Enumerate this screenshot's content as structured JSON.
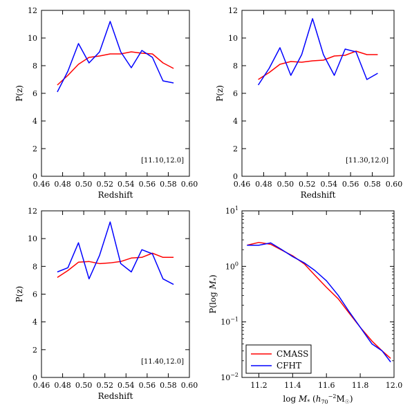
{
  "chart_data": [
    {
      "type": "line",
      "xlabel": "Redshift",
      "ylabel": "P(z)",
      "xlim": [
        0.46,
        0.6
      ],
      "ylim": [
        0,
        12
      ],
      "xticks": [
        "0.46",
        "0.48",
        "0.50",
        "0.52",
        "0.54",
        "0.56",
        "0.58",
        "0.60"
      ],
      "xtick_values": [
        0.46,
        0.48,
        0.5,
        0.52,
        0.54,
        0.56,
        0.58,
        0.6
      ],
      "yticks": [
        "0",
        "2",
        "4",
        "6",
        "8",
        "10",
        "12"
      ],
      "ytick_values": [
        0,
        2,
        4,
        6,
        8,
        10,
        12
      ],
      "annotation": "[11.10,12.0]",
      "series": [
        {
          "color": "#ff0000",
          "x": [
            0.475,
            0.485,
            0.495,
            0.505,
            0.515,
            0.525,
            0.535,
            0.545,
            0.555,
            0.565,
            0.575,
            0.585
          ],
          "y": [
            6.6,
            7.3,
            8.1,
            8.6,
            8.7,
            8.85,
            8.85,
            9.0,
            8.9,
            8.85,
            8.2,
            7.8
          ]
        },
        {
          "color": "#0000ff",
          "x": [
            0.475,
            0.485,
            0.495,
            0.505,
            0.515,
            0.525,
            0.535,
            0.545,
            0.555,
            0.565,
            0.575,
            0.585
          ],
          "y": [
            6.1,
            7.6,
            9.6,
            8.2,
            9.0,
            11.2,
            9.0,
            7.85,
            9.1,
            8.6,
            6.9,
            6.75
          ]
        }
      ]
    },
    {
      "type": "line",
      "xlabel": "Redshift",
      "ylabel": "P(z)",
      "xlim": [
        0.46,
        0.6
      ],
      "ylim": [
        0,
        12
      ],
      "xticks": [
        "0.46",
        "0.48",
        "0.50",
        "0.52",
        "0.54",
        "0.56",
        "0.58",
        "0.60"
      ],
      "xtick_values": [
        0.46,
        0.48,
        0.5,
        0.52,
        0.54,
        0.56,
        0.58,
        0.6
      ],
      "yticks": [
        "0",
        "2",
        "4",
        "6",
        "8",
        "10",
        "12"
      ],
      "ytick_values": [
        0,
        2,
        4,
        6,
        8,
        10,
        12
      ],
      "annotation": "[11.30,12.0]",
      "series": [
        {
          "color": "#ff0000",
          "x": [
            0.475,
            0.485,
            0.495,
            0.505,
            0.515,
            0.525,
            0.535,
            0.545,
            0.555,
            0.565,
            0.575,
            0.585
          ],
          "y": [
            7.0,
            7.5,
            8.1,
            8.3,
            8.25,
            8.35,
            8.4,
            8.7,
            8.75,
            9.05,
            8.8,
            8.8
          ]
        },
        {
          "color": "#0000ff",
          "x": [
            0.475,
            0.485,
            0.495,
            0.505,
            0.515,
            0.525,
            0.535,
            0.545,
            0.555,
            0.565,
            0.575,
            0.585
          ],
          "y": [
            6.6,
            7.8,
            9.3,
            7.3,
            8.8,
            11.4,
            8.8,
            7.3,
            9.2,
            9.0,
            7.0,
            7.45
          ]
        }
      ]
    },
    {
      "type": "line",
      "xlabel": "Redshift",
      "ylabel": "P(z)",
      "xlim": [
        0.46,
        0.6
      ],
      "ylim": [
        0,
        12
      ],
      "xticks": [
        "0.46",
        "0.48",
        "0.50",
        "0.52",
        "0.54",
        "0.56",
        "0.58",
        "0.60"
      ],
      "xtick_values": [
        0.46,
        0.48,
        0.5,
        0.52,
        0.54,
        0.56,
        0.58,
        0.6
      ],
      "yticks": [
        "0",
        "2",
        "4",
        "6",
        "8",
        "10",
        "12"
      ],
      "ytick_values": [
        0,
        2,
        4,
        6,
        8,
        10,
        12
      ],
      "annotation": "[11.40,12.0]",
      "series": [
        {
          "color": "#ff0000",
          "x": [
            0.475,
            0.485,
            0.495,
            0.505,
            0.515,
            0.525,
            0.535,
            0.545,
            0.555,
            0.565,
            0.575,
            0.585
          ],
          "y": [
            7.2,
            7.7,
            8.3,
            8.35,
            8.2,
            8.25,
            8.35,
            8.6,
            8.65,
            8.95,
            8.65,
            8.65
          ]
        },
        {
          "color": "#0000ff",
          "x": [
            0.475,
            0.485,
            0.495,
            0.505,
            0.515,
            0.525,
            0.535,
            0.545,
            0.555,
            0.565,
            0.575,
            0.585
          ],
          "y": [
            7.6,
            7.9,
            9.7,
            7.1,
            8.8,
            11.2,
            8.2,
            7.6,
            9.2,
            8.9,
            7.1,
            6.7
          ]
        }
      ]
    },
    {
      "type": "line",
      "xlabel": "log M* (h70^-2 M☉)",
      "ylabel": "P(log M*)",
      "xlim": [
        11.1,
        12.0
      ],
      "ylim": [
        0.01,
        10
      ],
      "yscale": "log",
      "xticks": [
        "11.2",
        "11.4",
        "11.6",
        "11.8",
        "12.0"
      ],
      "xtick_values": [
        11.2,
        11.4,
        11.6,
        11.8,
        12.0
      ],
      "yticks": [
        "10⁻²",
        "10⁻¹",
        "10⁰",
        "10¹"
      ],
      "ytick_values": [
        0.01,
        0.1,
        1,
        10
      ],
      "legend": {
        "placement": "lower-left",
        "entries": [
          "CMASS",
          "CFHT"
        ]
      },
      "series": [
        {
          "name": "CMASS",
          "color": "#ff0000",
          "x": [
            11.13,
            11.2,
            11.27,
            11.33,
            11.4,
            11.47,
            11.53,
            11.6,
            11.67,
            11.73,
            11.8,
            11.87,
            11.93,
            11.98
          ],
          "y": [
            2.4,
            2.7,
            2.5,
            2.0,
            1.55,
            1.1,
            0.7,
            0.42,
            0.26,
            0.15,
            0.08,
            0.045,
            0.03,
            0.022
          ]
        },
        {
          "name": "CFHT",
          "color": "#0000ff",
          "x": [
            11.13,
            11.2,
            11.27,
            11.33,
            11.4,
            11.47,
            11.53,
            11.6,
            11.67,
            11.73,
            11.8,
            11.87,
            11.93,
            11.98
          ],
          "y": [
            2.4,
            2.4,
            2.65,
            2.05,
            1.5,
            1.15,
            0.85,
            0.55,
            0.3,
            0.16,
            0.08,
            0.04,
            0.03,
            0.019
          ]
        }
      ]
    }
  ]
}
